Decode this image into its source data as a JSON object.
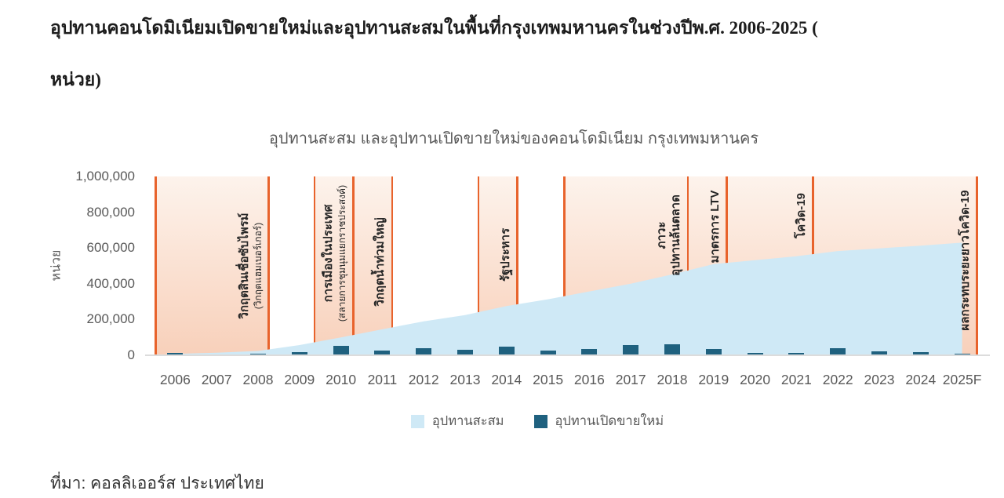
{
  "page": {
    "title_line1": "อุปทานคอนโดมิเนียมเปิดขายใหม่และอุปทานสะสมในพื้นที่กรุงเทพมหานครในช่วงปีพ.ศ. 2006-2025 (",
    "title_line2": "หน่วย)",
    "source": "ที่มา: คอลลิเออร์ส ประเทศไทย"
  },
  "chart_data": {
    "type": "area+bar combo",
    "title": "อุปทานสะสม และอุปทานเปิดขายใหม่ของคอนโดมิเนียม กรุงเทพมหานคร",
    "xlabel": "",
    "ylabel": "หน่วย",
    "ylim": [
      0,
      1000000
    ],
    "grid": false,
    "legend_position": "bottom",
    "ytick_labels": [
      "1,000,000",
      "800,000",
      "600,000",
      "400,000",
      "200,000",
      "0"
    ],
    "ytick_values": [
      1000000,
      800000,
      600000,
      400000,
      200000,
      0
    ],
    "categories": [
      "2006",
      "2007",
      "2008",
      "2009",
      "2010",
      "2011",
      "2012",
      "2013",
      "2014",
      "2015",
      "2016",
      "2017",
      "2018",
      "2019",
      "2020",
      "2021",
      "2022",
      "2023",
      "2024",
      "2025F"
    ],
    "series": [
      {
        "name": "อุปทานสะสม",
        "type": "area",
        "color": "#cfe9f6",
        "values": [
          8000,
          14000,
          24000,
          57000,
          100000,
          145000,
          190000,
          225000,
          275000,
          313000,
          357000,
          400000,
          452000,
          510000,
          532000,
          554000,
          583000,
          598000,
          613000,
          630000
        ]
      },
      {
        "name": "อุปทานเปิดขายใหม่",
        "type": "bar",
        "color": "#1f617f",
        "values": [
          12000,
          5000,
          8000,
          17000,
          52000,
          26000,
          40000,
          31000,
          48000,
          26000,
          34000,
          57000,
          62000,
          36000,
          13000,
          13000,
          39000,
          20000,
          18000,
          10000
        ]
      }
    ],
    "event_lines": [
      0,
      0.138,
      0.193,
      0.24,
      0.287,
      0.391,
      0.438,
      0.495,
      0.644,
      0.691,
      0.795,
      0.993
    ],
    "annotations": [
      {
        "from": 0.0,
        "to": 0.138,
        "lines": [
          "วิกฤตสินเชื่อซับไพรม์"
        ],
        "sub": "(วิกฤตแฮมเบอร์เกอร์)",
        "cy": 0.5
      },
      {
        "from": 0.193,
        "to": 0.24,
        "lines": [
          "การเมืองในประเทศ"
        ],
        "sub": "(สลายการชุมนุมแยกราชประสงค์)",
        "cy": 0.43
      },
      {
        "from": 0.24,
        "to": 0.287,
        "lines": [
          "วิกฤตน้ำท่วมใหญ่"
        ],
        "sub": "",
        "cy": 0.48
      },
      {
        "from": 0.391,
        "to": 0.438,
        "lines": [
          "รัฐประหาร"
        ],
        "sub": "",
        "cy": 0.44
      },
      {
        "from": 0.495,
        "to": 0.644,
        "lines": [
          "ภาวะ",
          "อุปทานล้นตลาด"
        ],
        "sub": "",
        "cy": 0.33
      },
      {
        "from": 0.644,
        "to": 0.691,
        "lines": [
          "มาตรการ LTV"
        ],
        "sub": "",
        "cy": 0.28
      },
      {
        "from": 0.691,
        "to": 0.795,
        "lines": [
          "โควิด-19"
        ],
        "sub": "",
        "cy": 0.22
      },
      {
        "from": 0.795,
        "to": 0.993,
        "lines": [
          "ผลกระทบระยะยาวโควิด-19"
        ],
        "sub": "",
        "cy": 0.47
      }
    ],
    "colors": {
      "event_line": "#e8632c",
      "band_top": "#fdf3ec",
      "band_bottom": "#f8d0ba",
      "area": "#cfe9f6",
      "bar": "#1f617f",
      "axis_text": "#595959",
      "annotation_text": "#262626",
      "baseline": "#dcdcdc"
    }
  }
}
